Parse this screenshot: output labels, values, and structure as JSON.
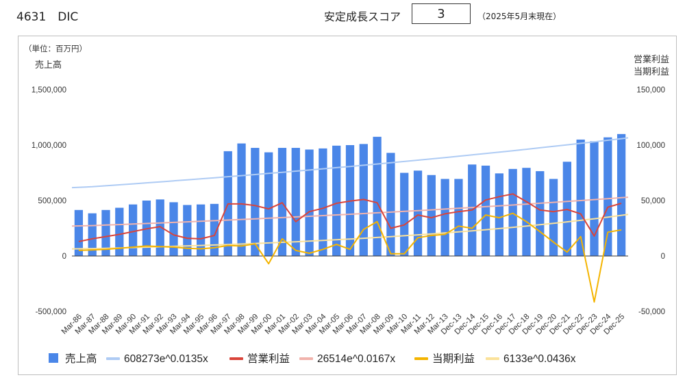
{
  "header": {
    "company": "4631　DIC",
    "score_label": "安定成長スコア",
    "score_value": "3",
    "as_of": "（2025年5月末現在）"
  },
  "chart_data": {
    "type": "bar",
    "unit_label": "（単位：百万円）",
    "left_axis_title": "売上高",
    "right_axis_title": [
      "営業利益",
      "当期利益"
    ],
    "categories": [
      "Mar-86",
      "Mar-87",
      "Mar-88",
      "Mar-89",
      "Mar-90",
      "Mar-91",
      "Mar-92",
      "Mar-93",
      "Mar-94",
      "Mar-95",
      "Mar-96",
      "Mar-97",
      "Mar-98",
      "Mar-99",
      "Mar-00",
      "Mar-01",
      "Mar-02",
      "Mar-03",
      "Mar-04",
      "Mar-05",
      "Mar-06",
      "Mar-07",
      "Mar-08",
      "Mar-09",
      "Mar-10",
      "Mar-11",
      "Mar-12",
      "Mar-13",
      "Dec-13",
      "Dec-14",
      "Dec-15",
      "Dec-16",
      "Dec-17",
      "Dec-18",
      "Dec-19",
      "Dec-20",
      "Dec-21",
      "Dec-22",
      "Dec-23",
      "Dec-24",
      "Dec-25"
    ],
    "left_axis": {
      "min": -500000,
      "max": 1500000,
      "ticks": [
        -500000,
        0,
        500000,
        1000000,
        1500000
      ],
      "tick_labels": [
        "-500,000",
        "0",
        "500,000",
        "1,000,000",
        "1,500,000"
      ]
    },
    "right_axis": {
      "min": -50000,
      "max": 150000,
      "ticks": [
        -50000,
        0,
        50000,
        100000,
        150000
      ],
      "tick_labels": [
        "-50,000",
        "0",
        "50,000",
        "100,000",
        "150,000"
      ]
    },
    "series": [
      {
        "name": "売上高",
        "type": "bar",
        "axis": "left",
        "color": "#4a86e8",
        "values": [
          415000,
          385000,
          415000,
          435000,
          465000,
          500000,
          510000,
          485000,
          460000,
          465000,
          470000,
          945000,
          1015000,
          975000,
          935000,
          975000,
          975000,
          960000,
          970000,
          995000,
          1000000,
          1010000,
          1075000,
          930000,
          750000,
          770000,
          730000,
          695000,
          695000,
          825000,
          815000,
          745000,
          785000,
          795000,
          765000,
          695000,
          850000,
          1050000,
          1035000,
          1070000,
          1100000
        ]
      },
      {
        "name": "608273e^0.0135x",
        "type": "trend",
        "axis": "left",
        "color": "#aecbf4",
        "a": 608273,
        "b": 0.0135
      },
      {
        "name": "営業利益",
        "type": "line",
        "axis": "right",
        "color": "#d9443a",
        "values": [
          13000,
          15500,
          17500,
          19500,
          22000,
          24500,
          26500,
          19000,
          16000,
          15500,
          18500,
          47000,
          47000,
          45500,
          42500,
          48000,
          31000,
          40000,
          43000,
          47500,
          49500,
          51000,
          48000,
          25000,
          28000,
          37000,
          34500,
          38000,
          40000,
          41500,
          50500,
          53500,
          56000,
          49000,
          41500,
          40000,
          42000,
          38000,
          18000,
          44000,
          47500
        ]
      },
      {
        "name": "26514e^0.0167x",
        "type": "trend",
        "axis": "right",
        "color": "#f1b3ac",
        "a": 26514,
        "b": 0.0167
      },
      {
        "name": "当期利益",
        "type": "line",
        "axis": "right",
        "color": "#f4b400",
        "values": [
          5000,
          5500,
          6000,
          7000,
          8000,
          9000,
          8500,
          8000,
          7000,
          6500,
          7500,
          9500,
          9000,
          11000,
          -7000,
          15500,
          5000,
          2500,
          6000,
          10500,
          6000,
          24000,
          31000,
          2000,
          2000,
          16500,
          18500,
          19500,
          27000,
          25000,
          37000,
          34500,
          38500,
          31000,
          22000,
          12500,
          3500,
          17500,
          -41500,
          21500,
          23500
        ]
      },
      {
        "name": "6133e^0.0436x",
        "type": "trend",
        "axis": "right",
        "color": "#fbe29a",
        "a": 6133,
        "b": 0.0436
      }
    ],
    "legend_position": "bottom",
    "grid": false
  }
}
